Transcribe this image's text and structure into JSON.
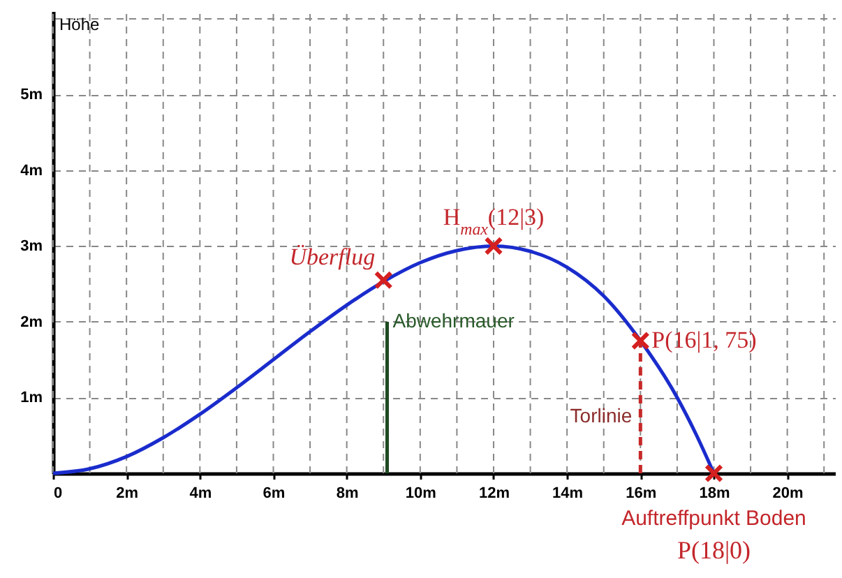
{
  "chart_data": {
    "type": "line",
    "ylabel": "Höhe",
    "xlim": [
      0,
      21.3
    ],
    "ylim": [
      0,
      6.1
    ],
    "xticks": [
      {
        "value": 0,
        "label": "0"
      },
      {
        "value": 1,
        "label": null
      },
      {
        "value": 2,
        "label": "2m"
      },
      {
        "value": 3,
        "label": null
      },
      {
        "value": 4,
        "label": "4m"
      },
      {
        "value": 5,
        "label": null
      },
      {
        "value": 6,
        "label": "6m"
      },
      {
        "value": 7,
        "label": null
      },
      {
        "value": 8,
        "label": "8m"
      },
      {
        "value": 9,
        "label": null
      },
      {
        "value": 10,
        "label": "10m"
      },
      {
        "value": 11,
        "label": null
      },
      {
        "value": 12,
        "label": "12m"
      },
      {
        "value": 13,
        "label": null
      },
      {
        "value": 14,
        "label": "14m"
      },
      {
        "value": 15,
        "label": null
      },
      {
        "value": 16,
        "label": "16m"
      },
      {
        "value": 17,
        "label": null
      },
      {
        "value": 18,
        "label": "18m"
      },
      {
        "value": 19,
        "label": null
      },
      {
        "value": 20,
        "label": "20m"
      },
      {
        "value": 21,
        "label": null
      }
    ],
    "yticks": [
      {
        "value": 1,
        "label": "1m"
      },
      {
        "value": 2,
        "label": "2m"
      },
      {
        "value": 3,
        "label": "3m"
      },
      {
        "value": 4,
        "label": "4m"
      },
      {
        "value": 5,
        "label": "5m"
      },
      {
        "value": 6,
        "label": null
      }
    ],
    "grid": true,
    "series": [
      {
        "type": "line",
        "color": "#1a2ccc",
        "x": [
          0,
          1,
          2,
          3,
          4,
          5,
          6,
          7,
          8,
          9,
          10,
          11,
          12,
          13,
          14,
          15,
          16,
          17,
          17.5,
          18
        ],
        "values": [
          0,
          0.06,
          0.22,
          0.47,
          0.78,
          1.13,
          1.5,
          1.87,
          2.22,
          2.53,
          2.78,
          2.94,
          3,
          2.93,
          2.72,
          2.34,
          1.75,
          1.0,
          0.53,
          0
        ]
      },
      {
        "type": "line",
        "color": "#1e4a22",
        "x": [
          9.1,
          9.1
        ],
        "values": [
          0,
          2
        ]
      },
      {
        "type": "line",
        "color": "#c62828",
        "line_style": "dashed",
        "x": [
          16,
          16
        ],
        "values": [
          0,
          1.75
        ]
      },
      {
        "type": "scatter",
        "marker": "cross",
        "color": "#d42020",
        "x": [
          9,
          12,
          16,
          18
        ],
        "values": [
          2.55,
          3,
          1.75,
          0
        ]
      }
    ],
    "annotations": [
      {
        "text": "Überflug",
        "x": 9,
        "y": 2.55
      },
      {
        "text": "H$_{max}$(12|3)",
        "x": 12,
        "y": 3
      },
      {
        "text": "P(16|1, 75)",
        "x": 16,
        "y": 1.75
      },
      {
        "text": "Abwehrmauer",
        "x": 9.1,
        "y": 2
      },
      {
        "text": "Torlinie",
        "x": 16,
        "y": 0.75
      },
      {
        "text": "Auftreffpunkt Boden",
        "x": 18,
        "y": 0
      },
      {
        "text": "P(18|0)",
        "x": 18,
        "y": 0
      }
    ]
  }
}
